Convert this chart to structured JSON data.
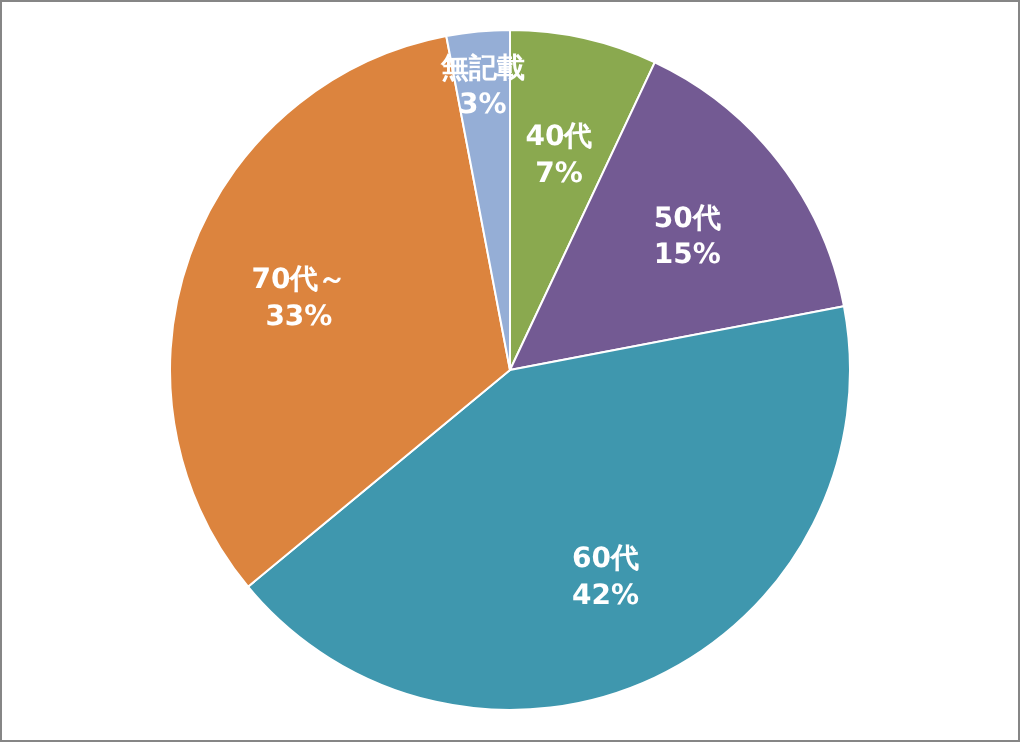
{
  "chart_data": {
    "type": "pie",
    "categories": [
      "40代",
      "50代",
      "60代",
      "70代～",
      "無記載"
    ],
    "values": [
      7,
      15,
      42,
      33,
      3
    ],
    "value_labels": [
      "7%",
      "15%",
      "42%",
      "33%",
      "3%"
    ],
    "colors": [
      "#8aa94f",
      "#735a93",
      "#3f97ae",
      "#dc843e",
      "#95aed6"
    ],
    "legend": false
  }
}
